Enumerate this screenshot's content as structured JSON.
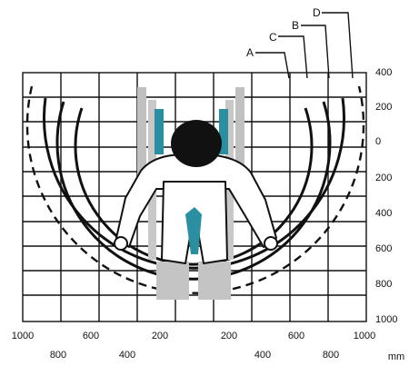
{
  "zone_labels": [
    "A",
    "B",
    "C",
    "D"
  ],
  "y_axis_labels": [
    "400",
    "200",
    "0",
    "200",
    "400",
    "600",
    "800",
    "1000"
  ],
  "x_axis_top_labels": [
    "1000",
    "600",
    "200",
    "200",
    "600",
    "1000"
  ],
  "x_axis_bottom_labels": [
    "800",
    "400",
    "400",
    "800"
  ],
  "unit_label": "mm",
  "colors": {
    "grid": "#111111",
    "figure_fill": "#ffffff",
    "head": "#111111",
    "chair_frame": "#b8b8b8",
    "seat_accent": "#2a8fa0"
  }
}
